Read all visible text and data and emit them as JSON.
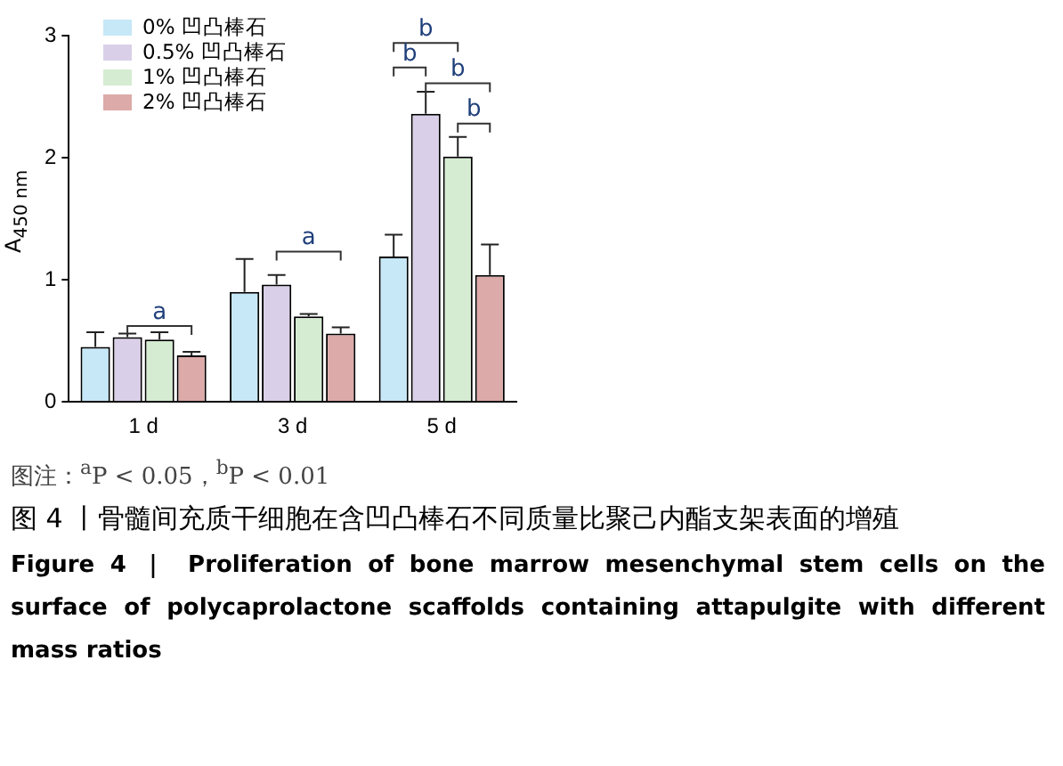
{
  "chart_data": {
    "type": "bar",
    "title": "图 4 丨骨髓间充质干细胞在含凹凸棒石不同质量比聚己内酯支架表面的增殖",
    "subtitle": "Figure 4 ｜ Proliferation of bone marrow mesenchymal stem cells on the surface of polycaprolactone scaffolds containing attapulgite with different mass ratios",
    "ylabel": "A$_{450 nm}$",
    "categories": [
      "1 d",
      "3 d",
      "5 d"
    ],
    "series": [
      {
        "name": "0% 凹凸棒石",
        "color": "#c6e8f7",
        "values": [
          0.45,
          0.9,
          1.19
        ],
        "errors": [
          [
            0.45,
            0.57
          ],
          [
            0.9,
            1.17
          ],
          [
            1.19,
            1.37
          ]
        ]
      },
      {
        "name": "0.5% 凹凸棒石",
        "color": "#dacfe8",
        "values": [
          0.53,
          0.96,
          2.36
        ],
        "errors": [
          [
            0.53,
            0.56
          ],
          [
            0.96,
            1.04
          ],
          [
            2.36,
            2.54
          ]
        ]
      },
      {
        "name": "1% 凹凸棒石",
        "color": "#d5ecd2",
        "values": [
          0.51,
          0.7,
          2.01
        ],
        "errors": [
          [
            0.51,
            0.57
          ],
          [
            0.7,
            0.72
          ],
          [
            2.01,
            2.17
          ]
        ]
      },
      {
        "name": "2% 凹凸棒石",
        "color": "#dcaaa8",
        "values": [
          0.38,
          0.56,
          1.04
        ],
        "errors": [
          [
            0.38,
            0.41
          ],
          [
            0.56,
            0.61
          ],
          [
            1.04,
            1.29
          ]
        ]
      }
    ],
    "ylim": [
      0,
      3
    ],
    "yticks": [
      0,
      1,
      2,
      3
    ],
    "legend": "top left",
    "annotations": [
      "图注：$^{a}$P < 0.05，$^{b}$P < 0.01",
      "a",
      "a",
      "b",
      "b",
      "b",
      "b"
    ]
  }
}
